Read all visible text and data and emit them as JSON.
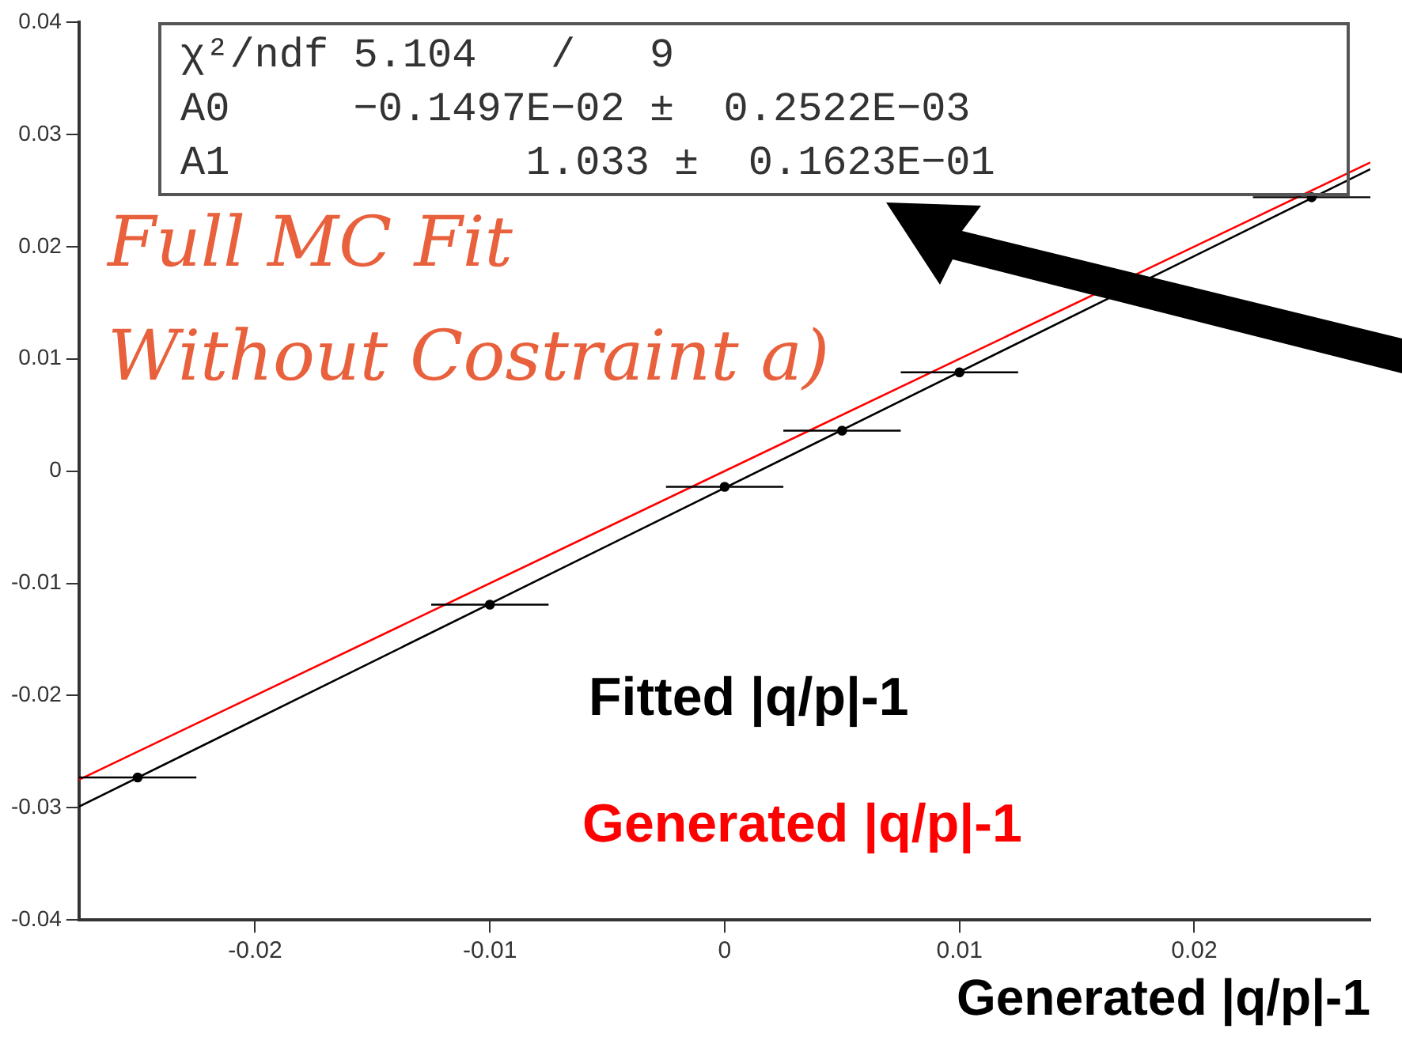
{
  "chart_data": {
    "type": "scatter",
    "xlabel": "Generated |q/p|-1",
    "xlim": [
      -0.0275,
      0.0275
    ],
    "xticks": [
      -0.02,
      -0.01,
      0,
      0.01,
      0.02
    ],
    "ylim": [
      -0.04,
      0.04
    ],
    "yticks": [
      -0.04,
      -0.03,
      -0.02,
      -0.01,
      0,
      0.01,
      0.02,
      0.03,
      0.04
    ],
    "grid": false,
    "legend": false,
    "series": [
      {
        "type": "scatter",
        "color": "#000000",
        "marker": "circle",
        "x": [
          -0.025,
          -0.01,
          0,
          0.005,
          0.01,
          0.025
        ],
        "values": [
          -0.0273,
          -0.0119,
          -0.0014,
          0.0036,
          0.0088,
          0.0244
        ],
        "xerrors": [
          0.0025,
          0.0025,
          0.0025,
          0.0025,
          0.0025,
          0.0025
        ]
      },
      {
        "type": "line",
        "name": "Fitted |q/p|-1",
        "color": "#000000",
        "x": [
          -0.0275,
          0.0275
        ],
        "values": [
          -0.0299,
          0.0269
        ]
      },
      {
        "type": "line",
        "name": "Generated |q/p|-1",
        "color": "#ff0000",
        "x": [
          -0.0275,
          0.0275
        ],
        "values": [
          -0.0275,
          0.0275
        ]
      }
    ],
    "annotations": [
      "χ²/ndf 5.104   /   9",
      "A0     −0.1497E−02 ±  0.2522E−03",
      "A1            1.033 ±  0.1623E−01",
      "Full MC Fit",
      "Without Costraint a)"
    ]
  }
}
